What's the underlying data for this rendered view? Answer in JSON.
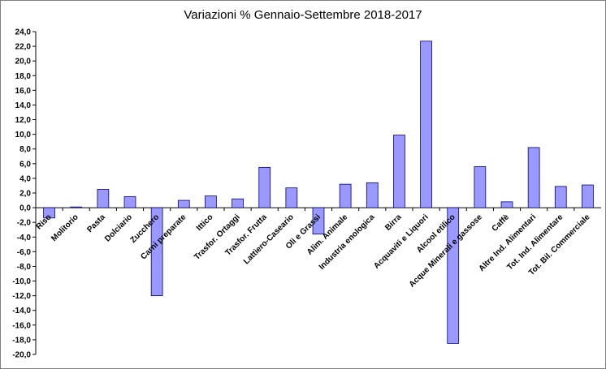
{
  "chart_data": {
    "type": "bar",
    "title": "Variazioni % Gennaio-Settembre 2018-2017",
    "xlabel": "",
    "ylabel": "",
    "ylim": [
      -20,
      24
    ],
    "yticks": [
      "24,0",
      "22,0",
      "20,0",
      "18,0",
      "16,0",
      "14,0",
      "12,0",
      "10,0",
      "8,0",
      "6,0",
      "4,0",
      "2,0",
      "0,0",
      "-2,0",
      "-4,0",
      "-6,0",
      "-8,0",
      "-10,0",
      "-12,0",
      "-14,0",
      "-16,0",
      "-18,0",
      "-20,0"
    ],
    "categories": [
      "Riso",
      "Molitorio",
      "Pasta",
      "Dolciario",
      "Zucchero",
      "Carni preparate",
      "Ittico",
      "Trasfor. Ortaggi",
      "Trasfor. Frutta",
      "Lattiero-Caseario",
      "Oli e Grassi",
      "Alim. Animale",
      "Industria enologica",
      "Birra",
      "Acquaviti e Liquori",
      "Alcool etilico",
      "Acque Minerali e gassose",
      "Caffè",
      "Altre Ind. Alimentari",
      "Tot. Ind. Alimentare",
      "Tot. Bil. Commerciale"
    ],
    "values": [
      -1.4,
      0.1,
      2.5,
      1.5,
      -12.0,
      1.0,
      1.6,
      1.2,
      5.5,
      2.7,
      -3.6,
      3.2,
      3.4,
      9.9,
      22.7,
      -18.5,
      5.6,
      0.8,
      8.2,
      2.9,
      3.1
    ],
    "grid": false,
    "legend": "none",
    "colors": {
      "bar_fill": "#9999ff",
      "bar_stroke": "#000080",
      "axis": "#000000"
    }
  }
}
